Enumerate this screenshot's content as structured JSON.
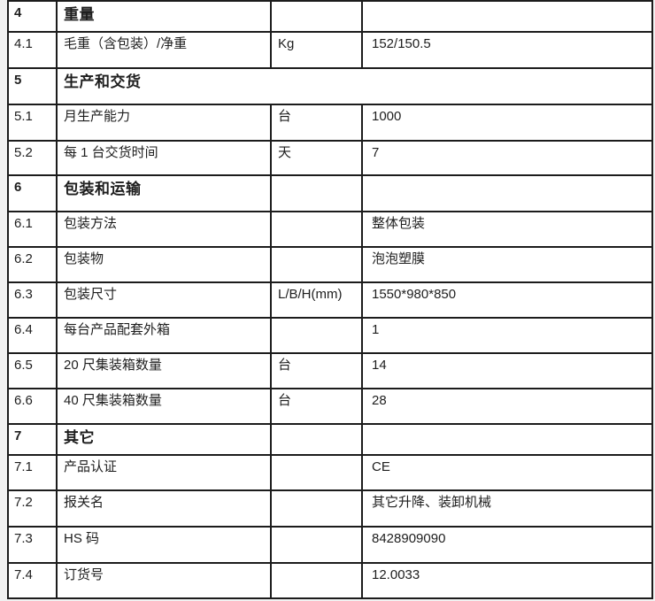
{
  "document": {
    "kind": "product-specification-table",
    "language": "zh-CN"
  },
  "colors": {
    "border": "#1c1c1c",
    "text": "#1e1e1e",
    "table_background": "#ffffff",
    "page_background": "#f1f1f1"
  },
  "table": {
    "columns": [
      "no",
      "label",
      "unit",
      "value"
    ],
    "rows": [
      {
        "type": "section",
        "no": "4",
        "label": "重量",
        "unit": "",
        "value": "",
        "merged": false
      },
      {
        "type": "data",
        "no": "4.1",
        "label": "毛重（含包装）/净重",
        "unit": "Kg",
        "value": "152/150.5",
        "merged": false
      },
      {
        "type": "section",
        "no": "5",
        "label": "生产和交货",
        "unit": "",
        "value": "",
        "merged": true
      },
      {
        "type": "data",
        "no": "5.1",
        "label": "月生产能力",
        "unit": "台",
        "value": "1000",
        "merged": false
      },
      {
        "type": "data",
        "no": "5.2",
        "label": "每 1 台交货时间",
        "unit": "天",
        "value": "7",
        "merged": false
      },
      {
        "type": "section",
        "no": "6",
        "label": "包装和运输",
        "unit": "",
        "value": "",
        "merged": false
      },
      {
        "type": "data",
        "no": "6.1",
        "label": "包装方法",
        "unit": "",
        "value": "整体包装",
        "merged": false
      },
      {
        "type": "data",
        "no": "6.2",
        "label": "包装物",
        "unit": "",
        "value": "泡泡塑膜",
        "merged": false
      },
      {
        "type": "data",
        "no": "6.3",
        "label": "包装尺寸",
        "unit": "L/B/H(mm)",
        "value": "1550*980*850",
        "merged": false
      },
      {
        "type": "data",
        "no": "6.4",
        "label": "每台产品配套外箱",
        "unit": "",
        "value": "1",
        "merged": false
      },
      {
        "type": "data",
        "no": "6.5",
        "label": "20 尺集装箱数量",
        "unit": "台",
        "value": "14",
        "merged": false
      },
      {
        "type": "data",
        "no": "6.6",
        "label": "40 尺集装箱数量",
        "unit": "台",
        "value": "28",
        "merged": false
      },
      {
        "type": "section",
        "no": "7",
        "label": "其它",
        "unit": "",
        "value": "",
        "merged": false
      },
      {
        "type": "data",
        "no": "7.1",
        "label": "产品认证",
        "unit": "",
        "value": "CE",
        "merged": false
      },
      {
        "type": "data",
        "no": "7.2",
        "label": "报关名",
        "unit": "",
        "value": "其它升降、装卸机械",
        "merged": false
      },
      {
        "type": "data",
        "no": "7.3",
        "label": "HS 码",
        "unit": "",
        "value": "8428909090",
        "merged": false
      },
      {
        "type": "data",
        "no": "7.4",
        "label": "订货号",
        "unit": "",
        "value": "12.0033",
        "merged": false
      }
    ]
  }
}
